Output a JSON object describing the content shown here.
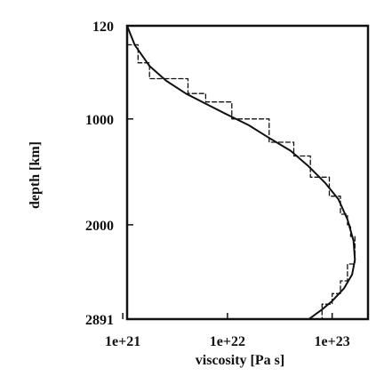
{
  "chart_data": {
    "type": "line",
    "title": "",
    "xlabel": "viscosity  [Pa s]",
    "ylabel": "depth  [km]",
    "x_scale": "log",
    "xlim": [
      1.1e+21,
      2.2e+23
    ],
    "ylim": [
      120,
      2891
    ],
    "y_inverted": true,
    "grid": false,
    "x_ticks": [
      {
        "value": 1e+21,
        "label": "1e+21"
      },
      {
        "value": 1e+22,
        "label": "1e+22"
      },
      {
        "value": 1e+23,
        "label": "1e+23"
      }
    ],
    "y_ticks": [
      {
        "value": 120,
        "label": "120"
      },
      {
        "value": 1000,
        "label": "1000"
      },
      {
        "value": 2000,
        "label": "2000"
      },
      {
        "value": 2891,
        "label": "2891"
      }
    ],
    "series": [
      {
        "style": "solid",
        "x": [
          1.1e+21,
          1.3e+21,
          1.8e+21,
          2.6e+21,
          4e+21,
          6e+21,
          9.5e+21,
          1.6e+22,
          2.5e+22,
          4e+22,
          6e+22,
          8.5e+22,
          1.15e+23,
          1.4e+23,
          1.6e+23,
          1.65e+23,
          1.55e+23,
          1.3e+23,
          1e+23,
          8e+22,
          6e+22
        ],
        "y": [
          120,
          300,
          500,
          640,
          760,
          850,
          950,
          1060,
          1180,
          1300,
          1450,
          1600,
          1760,
          1950,
          2150,
          2330,
          2470,
          2600,
          2720,
          2800,
          2891
        ]
      },
      {
        "style": "dashed",
        "x": [
          1.1e+21,
          1.4e+21,
          1.4e+21,
          1.8e+21,
          1.8e+21,
          4.2e+21,
          4.2e+21,
          6.2e+21,
          6.2e+21,
          1.1e+22,
          1.1e+22,
          2.5e+22,
          2.5e+22,
          4.3e+22,
          4.3e+22,
          6.2e+22,
          6.2e+22,
          9.4e+22,
          9.4e+22,
          1.2e+23,
          1.2e+23,
          1.4e+23,
          1.4e+23,
          1.5e+23,
          1.5e+23,
          1.65e+23,
          1.65e+23,
          1.4e+23,
          1.4e+23,
          1.2e+23,
          1.2e+23,
          1e+23,
          1e+23,
          8e+22,
          8e+22
        ],
        "y": [
          300,
          300,
          470,
          470,
          620,
          620,
          760,
          760,
          840,
          840,
          1000,
          1000,
          1220,
          1220,
          1350,
          1350,
          1550,
          1550,
          1730,
          1730,
          1900,
          1900,
          2000,
          2000,
          2110,
          2110,
          2370,
          2370,
          2530,
          2530,
          2650,
          2650,
          2750,
          2750,
          2891
        ]
      }
    ]
  }
}
